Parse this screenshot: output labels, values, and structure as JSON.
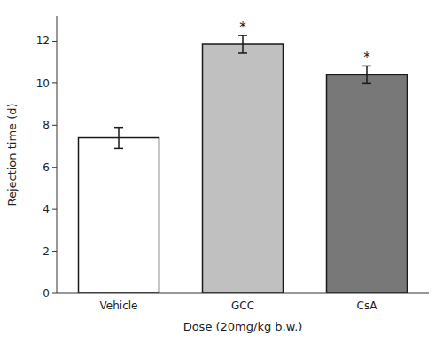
{
  "chart_data": {
    "type": "bar",
    "categories": [
      "Vehicle",
      "GCC",
      "CsA"
    ],
    "values": [
      7.4,
      11.85,
      10.4
    ],
    "errors": [
      0.5,
      0.42,
      0.42
    ],
    "colors": [
      "#ffffff",
      "#c0c0c0",
      "#787878"
    ],
    "xlabel": "Dose (20mg/kg b.w.)",
    "ylabel": "Rejection time (d)",
    "ylim": [
      0,
      13.2
    ],
    "yticks": [
      0,
      2,
      4,
      6,
      8,
      10,
      12
    ],
    "annotations": [
      {
        "text": "*",
        "category": "GCC"
      },
      {
        "text": "*",
        "category": "CsA"
      }
    ],
    "grid": false
  }
}
